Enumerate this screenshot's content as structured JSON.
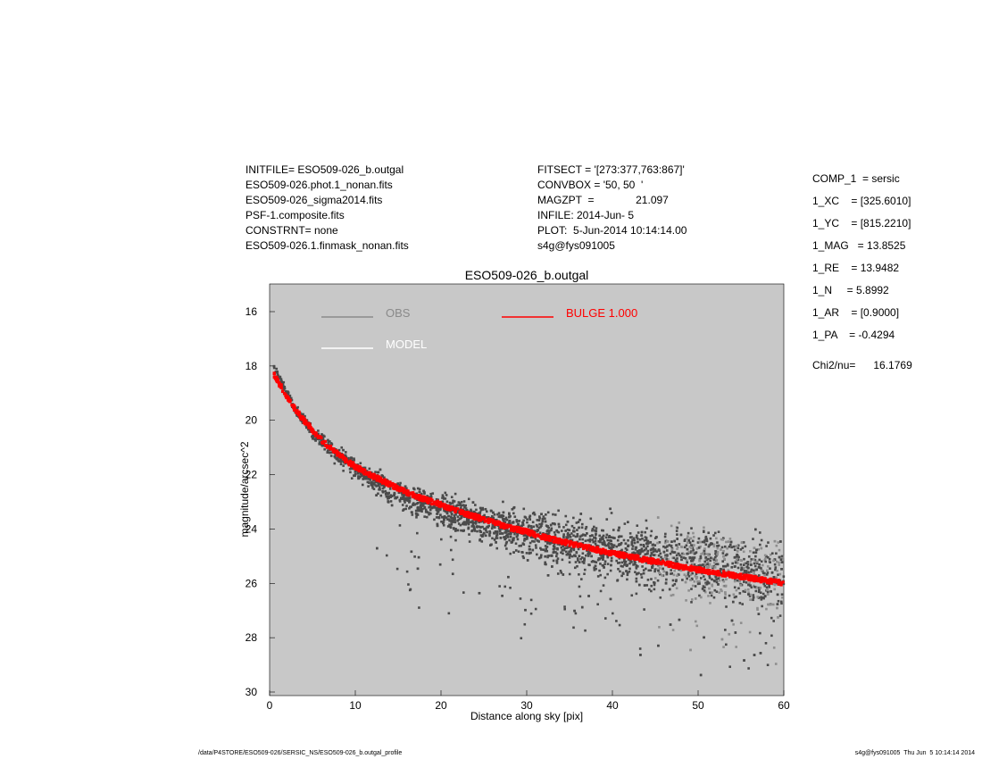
{
  "header_left": [
    "INITFILE= ESO509-026_b.outgal",
    "ESO509-026.phot.1_nonan.fits",
    "ESO509-026_sigma2014.fits",
    "PSF-1.composite.fits",
    "CONSTRNT= none",
    "ESO509-026.1.finmask_nonan.fits"
  ],
  "header_mid": [
    "FITSECT = '[273:377,763:867]'",
    "CONVBOX = '50, 50  '",
    "MAGZPT  =              21.097",
    "INFILE: 2014-Jun- 5",
    "PLOT:  5-Jun-2014 10:14:14.00",
    "s4g@fys091005"
  ],
  "params": [
    "COMP_1  = sersic",
    "1_XC    = [325.6010]",
    "1_YC    = [815.2210]",
    "1_MAG   = 13.8525",
    "1_RE    = 13.9482",
    "1_N     = 5.8992",
    "1_AR    = [0.9000]",
    "1_PA    = -0.4294"
  ],
  "chi": "Chi2/nu=      16.1769",
  "footer_left": "/data/P4STORE/ESO509-026/SERSIC_NS/ESO509-026_b.outgal_profile",
  "footer_right": "s4g@fys091005  Thu Jun  5 10:14:14 2014",
  "chart_data": {
    "type": "scatter",
    "title": "ESO509-026_b.outgal",
    "xlabel": "Distance along sky [pix]",
    "ylabel": "magnitude/arcsec^2",
    "xlim": [
      0,
      60
    ],
    "ylim": [
      30,
      15
    ],
    "y_inverted": true,
    "xticks": [
      0,
      10,
      20,
      30,
      40,
      50,
      60
    ],
    "yticks": [
      16,
      18,
      20,
      22,
      24,
      26,
      28,
      30
    ],
    "background": "#c8c8c8",
    "legend": [
      {
        "label": "OBS",
        "color": "#8a8a8a"
      },
      {
        "label": "MODEL",
        "color": "#ffffff"
      },
      {
        "label": "BULGE  1.000",
        "color": "#ff0000"
      }
    ],
    "series": [
      {
        "name": "OBS",
        "color": "#4a4a4a",
        "x": [
          0.5,
          1,
          1.5,
          2,
          2.5,
          3,
          3.5,
          4,
          4.5,
          5,
          5.5,
          6,
          6.5,
          7,
          7.5,
          8,
          8.5,
          9,
          9.5,
          10,
          11,
          12,
          13,
          14,
          15,
          16,
          17,
          18,
          19,
          20,
          22,
          24,
          26,
          28,
          30,
          32,
          34,
          36,
          38,
          40,
          42,
          44,
          46,
          48,
          50,
          52,
          54,
          56,
          58,
          60
        ],
        "y": [
          18.0,
          18.4,
          18.7,
          19.0,
          19.3,
          19.6,
          19.8,
          20.0,
          20.2,
          20.4,
          20.6,
          20.7,
          20.9,
          21.0,
          21.2,
          21.3,
          21.4,
          21.5,
          21.6,
          21.8,
          22.0,
          22.2,
          22.4,
          22.6,
          22.7,
          22.9,
          23.0,
          23.1,
          23.2,
          23.3,
          23.5,
          23.7,
          23.9,
          24.0,
          24.2,
          24.3,
          24.5,
          24.6,
          24.7,
          24.8,
          24.9,
          25.0,
          25.1,
          25.2,
          25.3,
          25.4,
          25.5,
          25.6,
          25.7,
          25.8
        ]
      },
      {
        "name": "BULGE  1.000",
        "color": "#ff0000",
        "x": [
          0.5,
          1,
          2,
          3,
          4,
          5,
          6,
          7,
          8,
          9,
          10,
          12,
          14,
          16,
          18,
          20,
          22,
          24,
          26,
          28,
          30,
          32,
          34,
          36,
          38,
          40,
          42,
          44,
          46,
          48,
          50,
          52,
          54,
          56,
          58,
          60
        ],
        "y": [
          18.3,
          18.6,
          19.1,
          19.6,
          20.0,
          20.35,
          20.7,
          21.0,
          21.25,
          21.5,
          21.7,
          22.05,
          22.35,
          22.65,
          22.9,
          23.1,
          23.35,
          23.55,
          23.75,
          23.95,
          24.1,
          24.3,
          24.45,
          24.6,
          24.75,
          24.9,
          25.0,
          25.15,
          25.25,
          25.4,
          25.5,
          25.6,
          25.7,
          25.8,
          25.9,
          26.0
        ]
      }
    ]
  }
}
